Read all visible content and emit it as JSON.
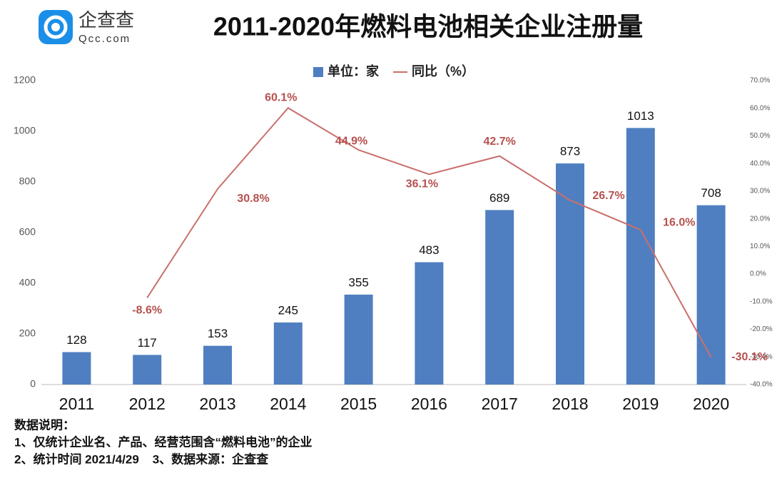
{
  "logo": {
    "name": "企查查",
    "site": "Qcc.com"
  },
  "chart_data": {
    "type": "bar-line",
    "title": "2011-2020年燃料电池相关企业注册量",
    "categories": [
      "2011",
      "2012",
      "2013",
      "2014",
      "2015",
      "2016",
      "2017",
      "2018",
      "2019",
      "2020"
    ],
    "series": [
      {
        "name": "单位：家",
        "type": "bar",
        "color": "#4f7fc0",
        "values": [
          128,
          117,
          153,
          245,
          355,
          483,
          689,
          873,
          1013,
          708
        ]
      },
      {
        "name": "同比（%）",
        "type": "line",
        "axis": "y2",
        "color": "#c9706d",
        "values": [
          null,
          -8.6,
          30.8,
          60.1,
          44.9,
          36.1,
          42.7,
          26.7,
          16.0,
          -30.1
        ],
        "value_labels": [
          null,
          "-8.6%",
          "30.8%",
          "60.1%",
          "44.9%",
          "36.1%",
          "42.7%",
          "26.7%",
          "16.0%",
          "-30.1%"
        ]
      }
    ],
    "ylim": [
      0,
      1200
    ],
    "yticks": [
      0,
      200,
      400,
      600,
      800,
      1000,
      1200
    ],
    "y2lim": [
      -40,
      70
    ],
    "y2ticks": [
      {
        "value": -40,
        "label": "-40.0%"
      },
      {
        "value": -30,
        "label": "-30.0%"
      },
      {
        "value": -20,
        "label": "-20.0%"
      },
      {
        "value": -10,
        "label": "-10.0%"
      },
      {
        "value": 0,
        "label": "0.0%"
      },
      {
        "value": 10,
        "label": "10.0%"
      },
      {
        "value": 20,
        "label": "20.0%"
      },
      {
        "value": 30,
        "label": "30.0%"
      },
      {
        "value": 40,
        "label": "40.0%"
      },
      {
        "value": 50,
        "label": "50.0%"
      },
      {
        "value": 60,
        "label": "60.0%"
      },
      {
        "value": 70,
        "label": "70.0%"
      }
    ],
    "grid": false,
    "legend": "top"
  },
  "notes": {
    "heading": "数据说明：",
    "lines": [
      "1、仅统计企业名、产品、经营范围含“燃料电池”的企业",
      "2、统计时间 2021/4/29    3、数据来源：企查查"
    ]
  }
}
